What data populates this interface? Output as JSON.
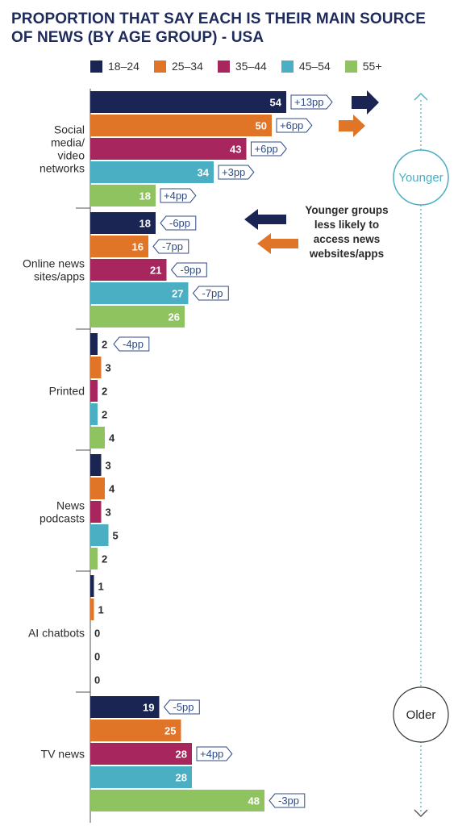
{
  "chart_data": {
    "type": "bar",
    "orientation": "horizontal",
    "title": "PROPORTION THAT SAY EACH IS THEIR MAIN SOURCE OF NEWS (BY AGE GROUP) - USA",
    "categories": [
      "Social media/ video networks",
      "Online news sites/apps",
      "Printed",
      "News podcasts",
      "AI chatbots",
      "TV news"
    ],
    "category_lines": [
      [
        "Social",
        "media/",
        "video",
        "networks"
      ],
      [
        "Online news",
        "sites/apps"
      ],
      [
        "Printed"
      ],
      [
        "News",
        "podcasts"
      ],
      [
        "AI chatbots"
      ],
      [
        "TV news"
      ]
    ],
    "series": [
      {
        "name": "18–24",
        "color": "#1b2553",
        "values": [
          54,
          18,
          2,
          3,
          1,
          19
        ],
        "changes": [
          "+13pp",
          "-6pp",
          "-4pp",
          "",
          "",
          "-5pp"
        ]
      },
      {
        "name": "25–34",
        "color": "#e07427",
        "values": [
          50,
          16,
          3,
          4,
          1,
          25
        ],
        "changes": [
          "+6pp",
          "-7pp",
          "",
          "",
          "",
          ""
        ]
      },
      {
        "name": "35–44",
        "color": "#a8265e",
        "values": [
          43,
          21,
          2,
          3,
          0,
          28
        ],
        "changes": [
          "+6pp",
          "-9pp",
          "",
          "",
          "",
          "+4pp"
        ]
      },
      {
        "name": "45–54",
        "color": "#4bafc3",
        "values": [
          34,
          27,
          2,
          5,
          0,
          28
        ],
        "changes": [
          "+3pp",
          "-7pp",
          "",
          "",
          "",
          ""
        ]
      },
      {
        "name": "55+",
        "color": "#8fc35f",
        "values": [
          18,
          26,
          4,
          2,
          0,
          48
        ],
        "changes": [
          "+4pp",
          "",
          "",
          "",
          "",
          "-3pp"
        ]
      }
    ],
    "legend_position": "top",
    "xlim": [
      0,
      60
    ],
    "grid": false,
    "annotations": {
      "note_lines": [
        "Younger groups",
        "less likely to",
        "access news",
        "websites/apps"
      ],
      "younger_label": "Younger",
      "older_label": "Older"
    },
    "colors": {
      "navy": "#1b2553",
      "orange": "#e07427",
      "teal": "#4bafc3",
      "change_text": "#2f4a84"
    }
  }
}
